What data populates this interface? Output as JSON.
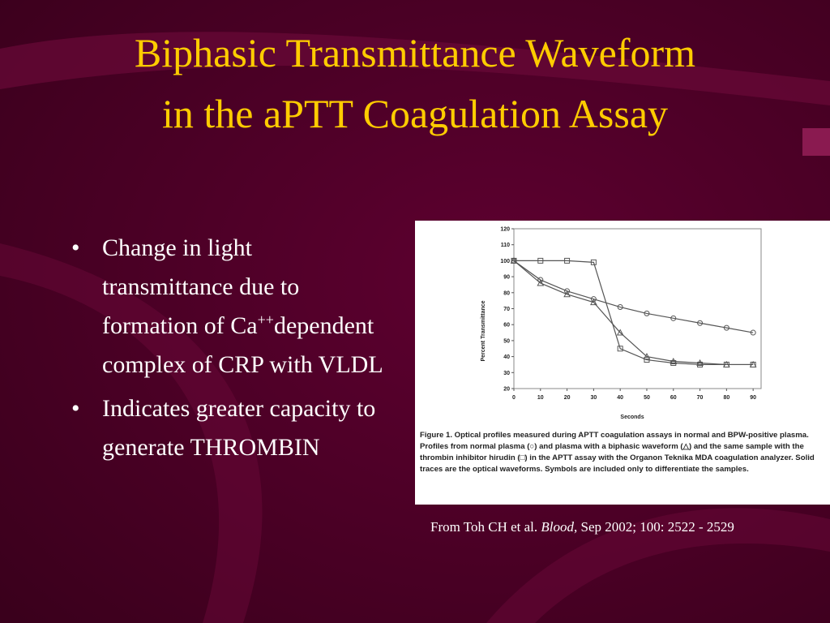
{
  "slide": {
    "title": "Biphasic Transmittance Waveform in the aPTT Coagulation Assay",
    "bullets": [
      {
        "text": "Change in light transmittance due to formation of Ca",
        "sup": "++",
        "text_after": "dependent complex of CRP with VLDL"
      },
      {
        "text": "Indicates greater capacity to generate THROMBIN"
      }
    ],
    "source": {
      "text": "From Toh CH et al. ",
      "journal": "Blood",
      "text_after": ", Sep 2002; 100: 2522 - 2529"
    }
  },
  "chart_data": {
    "type": "line",
    "caption": "Figure 1. Optical profiles measured during APTT coagulation assays in normal and BPW-positive plasma. Profiles from normal plasma (○) and plasma with a biphasic waveform (△) and the same sample with the thrombin inhibitor hirudin (□) in the APTT assay with the Organon Teknika MDA coagulation analyzer. Solid traces are the optical waveforms. Symbols are included only to differentiate the samples.",
    "x_label": "Seconds",
    "y_label": "Percent Transmittance",
    "x": [
      0,
      10,
      20,
      30,
      40,
      50,
      60,
      70,
      80,
      90
    ],
    "series": [
      {
        "marker": "circle",
        "color": "#555555",
        "values": [
          100,
          88,
          81,
          76,
          71,
          67,
          64,
          61,
          58,
          55
        ]
      },
      {
        "marker": "triangle",
        "color": "#555555",
        "values": [
          100,
          86,
          79,
          74,
          55,
          40,
          37,
          36,
          35,
          35
        ]
      },
      {
        "marker": "square",
        "color": "#555555",
        "values": [
          100,
          100,
          100,
          99,
          45,
          38,
          36,
          35,
          35,
          35
        ]
      }
    ],
    "xlim": [
      0,
      93
    ],
    "ylim": [
      20,
      120
    ],
    "xticks": [
      0,
      10,
      20,
      30,
      40,
      50,
      60,
      70,
      80,
      90
    ],
    "yticks": [
      20,
      30,
      40,
      50,
      60,
      70,
      80,
      90,
      100,
      110,
      120
    ]
  }
}
